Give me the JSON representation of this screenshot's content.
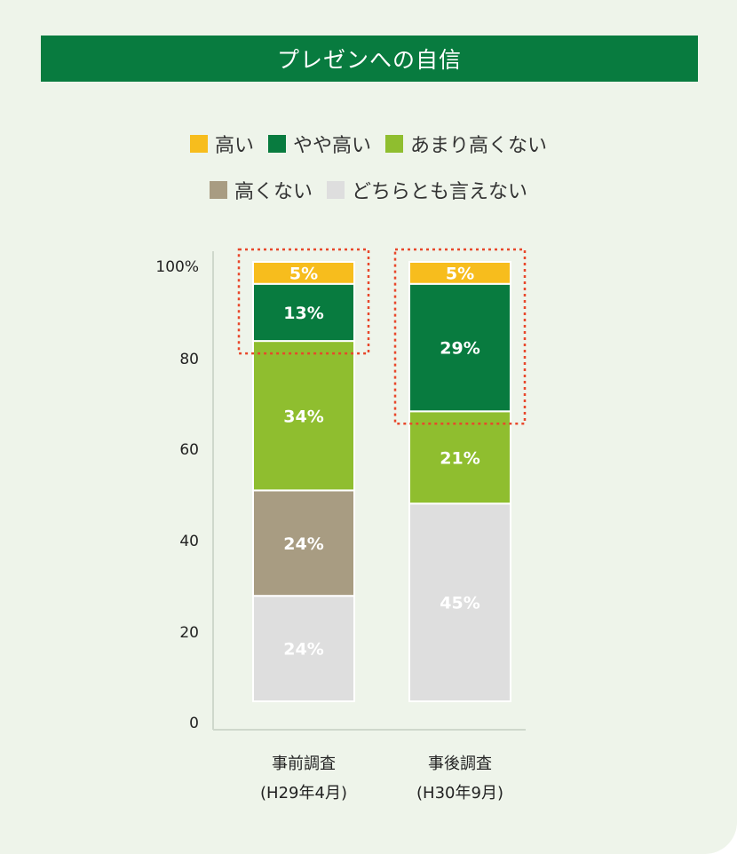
{
  "title": "プレゼンへの自信",
  "legend": [
    {
      "label": "高い",
      "color": "#f7bd1d"
    },
    {
      "label": "やや高い",
      "color": "#087b3f"
    },
    {
      "label": "あまり高くない",
      "color": "#8fbe2f"
    },
    {
      "label": "高くない",
      "color": "#a89c82"
    },
    {
      "label": "どちらとも言えない",
      "color": "#dedede"
    }
  ],
  "chart_data": {
    "type": "bar",
    "stacked": true,
    "categories": [
      {
        "line1": "事前調査",
        "line2": "(H29年4月)"
      },
      {
        "line1": "事後調査",
        "line2": "(H30年9月)"
      }
    ],
    "series": [
      {
        "name": "どちらとも言えない",
        "color": "#dedede",
        "label_color": "#ffffff",
        "values": [
          24,
          45
        ],
        "labels": [
          "24%",
          "45%"
        ]
      },
      {
        "name": "高くない",
        "color": "#a89c82",
        "label_color": "#ffffff",
        "values": [
          24,
          0
        ],
        "labels": [
          "24%",
          ""
        ]
      },
      {
        "name": "あまり高くない",
        "color": "#8fbe2f",
        "label_color": "#ffffff",
        "values": [
          34,
          21
        ],
        "labels": [
          "34%",
          "21%"
        ]
      },
      {
        "name": "やや高い",
        "color": "#087b3f",
        "label_color": "#ffffff",
        "values": [
          13,
          29
        ],
        "labels": [
          "13%",
          "29%"
        ]
      },
      {
        "name": "高い",
        "color": "#f7bd1d",
        "label_color": "#ffffff",
        "values": [
          5,
          5
        ],
        "labels": [
          "5%",
          "5%"
        ]
      }
    ],
    "yticks": [
      "0",
      "20",
      "40",
      "60",
      "80",
      "100%"
    ],
    "ylim": [
      0,
      100
    ],
    "highlight_series": [
      "やや高い",
      "高い"
    ],
    "highlight_color": "#e8472b"
  }
}
